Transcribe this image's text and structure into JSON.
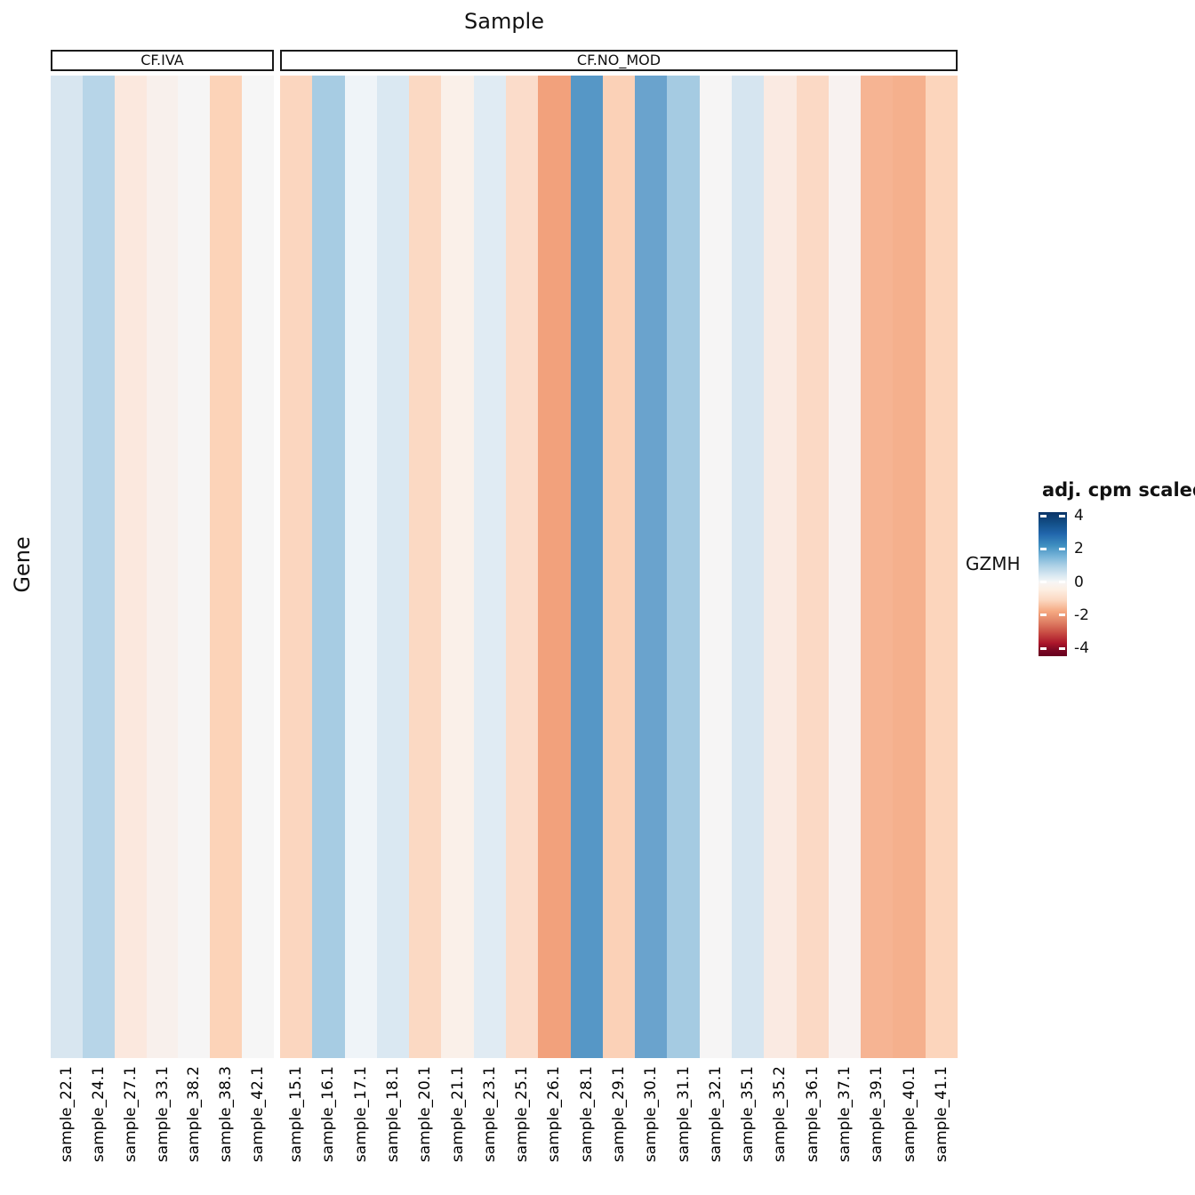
{
  "title": "Sample",
  "y_axis_label": "Gene",
  "row_label": "GZMH",
  "legend": {
    "title": "adj. cpm scaled",
    "tick_labels": [
      "4",
      "2",
      "0",
      "-2",
      "-4"
    ]
  },
  "chart_data": {
    "type": "heatmap",
    "title": "Sample",
    "xlabel": "Sample",
    "ylabel": "Gene",
    "rows": [
      "GZMH"
    ],
    "value_name": "adj. cpm scaled",
    "colorscale": {
      "name": "RdBu",
      "domain": [
        -4,
        4
      ],
      "legend_ticks": [
        4,
        2,
        0,
        -2,
        -4
      ]
    },
    "facets": [
      {
        "label": "CF.IVA",
        "columns": [
          {
            "sample": "sample_22.1",
            "value": 0.8,
            "color": "#d8e6f0"
          },
          {
            "sample": "sample_24.1",
            "value": 1.4,
            "color": "#b7d5e8"
          },
          {
            "sample": "sample_27.1",
            "value": -0.5,
            "color": "#fbe8de"
          },
          {
            "sample": "sample_33.1",
            "value": -0.2,
            "color": "#f8f0ec"
          },
          {
            "sample": "sample_38.2",
            "value": 0.0,
            "color": "#f6f5f5"
          },
          {
            "sample": "sample_38.3",
            "value": -1.2,
            "color": "#fcd3b8"
          },
          {
            "sample": "sample_42.1",
            "value": 0.0,
            "color": "#f6f6f6"
          }
        ]
      },
      {
        "label": "CF.NO_MOD",
        "columns": [
          {
            "sample": "sample_15.1",
            "value": -1.1,
            "color": "#fbd6bf"
          },
          {
            "sample": "sample_16.1",
            "value": 1.7,
            "color": "#a7cce3"
          },
          {
            "sample": "sample_17.1",
            "value": 0.3,
            "color": "#eff4f8"
          },
          {
            "sample": "sample_18.1",
            "value": 0.8,
            "color": "#dae8f2"
          },
          {
            "sample": "sample_20.1",
            "value": -1.0,
            "color": "#fbd9c3"
          },
          {
            "sample": "sample_21.1",
            "value": -0.3,
            "color": "#faf0e9"
          },
          {
            "sample": "sample_23.1",
            "value": 0.6,
            "color": "#e0ebf3"
          },
          {
            "sample": "sample_25.1",
            "value": -0.9,
            "color": "#fbdcca"
          },
          {
            "sample": "sample_26.1",
            "value": -2.3,
            "color": "#f2a17c"
          },
          {
            "sample": "sample_28.1",
            "value": 3.1,
            "color": "#5697c6"
          },
          {
            "sample": "sample_29.1",
            "value": -1.2,
            "color": "#fbd1b7"
          },
          {
            "sample": "sample_30.1",
            "value": 2.8,
            "color": "#6aa3cd"
          },
          {
            "sample": "sample_31.1",
            "value": 1.7,
            "color": "#a5cbe2"
          },
          {
            "sample": "sample_32.1",
            "value": 0.0,
            "color": "#f6f5f5"
          },
          {
            "sample": "sample_35.1",
            "value": 0.8,
            "color": "#d6e5f0"
          },
          {
            "sample": "sample_35.2",
            "value": -0.45,
            "color": "#faeae2"
          },
          {
            "sample": "sample_36.1",
            "value": -1.0,
            "color": "#fbd9c5"
          },
          {
            "sample": "sample_37.1",
            "value": -0.2,
            "color": "#f8f2f0"
          },
          {
            "sample": "sample_39.1",
            "value": -1.9,
            "color": "#f6b493"
          },
          {
            "sample": "sample_40.1",
            "value": -2.0,
            "color": "#f5b08d"
          },
          {
            "sample": "sample_41.1",
            "value": -1.1,
            "color": "#fcd5bc"
          }
        ]
      }
    ]
  }
}
